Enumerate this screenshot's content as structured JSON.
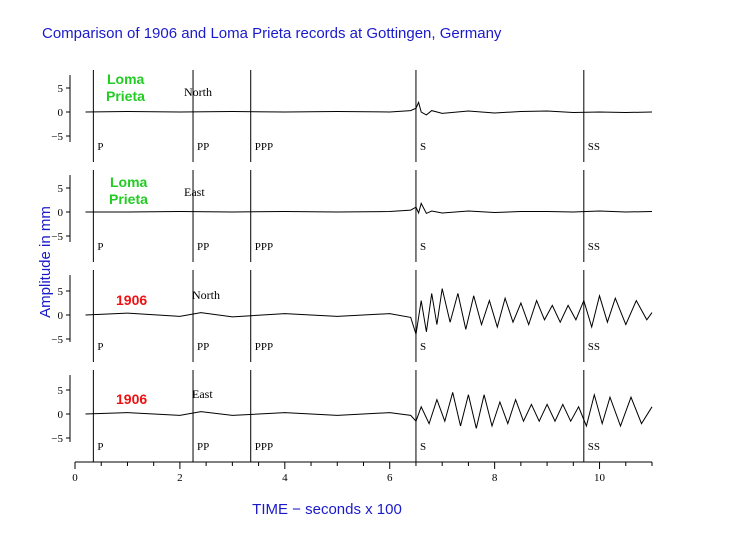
{
  "chart_data": {
    "type": "line",
    "title": "Comparison of 1906 and Loma Prieta records at Gottingen, Germany",
    "xlabel": "TIME − seconds x 100",
    "ylabel": "Amplitude in mm",
    "xlim": [
      0,
      11
    ],
    "x_ticks": [
      "0",
      "2",
      "4",
      "6",
      "8",
      "10"
    ],
    "ylim": [
      -6,
      6
    ],
    "y_ticks": [
      "5",
      "0",
      "−5"
    ],
    "phases": [
      {
        "label": "P",
        "x": 0.35
      },
      {
        "label": "PP",
        "x": 2.25
      },
      {
        "label": "PPP",
        "x": 3.35
      },
      {
        "label": "S",
        "x": 6.5
      },
      {
        "label": "SS",
        "x": 9.7
      }
    ],
    "series": [
      {
        "name": "Loma Prieta",
        "component": "North",
        "color": "#22cc22",
        "points": [
          [
            0.2,
            0
          ],
          [
            1,
            0.1
          ],
          [
            2,
            0
          ],
          [
            3,
            0.1
          ],
          [
            4,
            0
          ],
          [
            5,
            0.1
          ],
          [
            6,
            0
          ],
          [
            6.4,
            0.3
          ],
          [
            6.5,
            0.8
          ],
          [
            6.55,
            2.0
          ],
          [
            6.6,
            0
          ],
          [
            6.7,
            -0.6
          ],
          [
            6.8,
            0.3
          ],
          [
            7,
            -0.3
          ],
          [
            7.5,
            0.2
          ],
          [
            8,
            -0.2
          ],
          [
            8.5,
            0.1
          ],
          [
            9,
            0.2
          ],
          [
            9.5,
            -0.1
          ],
          [
            10,
            0
          ],
          [
            10.5,
            -0.1
          ],
          [
            11,
            0
          ]
        ]
      },
      {
        "name": "Loma Prieta",
        "component": "East",
        "color": "#22cc22",
        "points": [
          [
            0.2,
            0
          ],
          [
            1,
            0
          ],
          [
            2,
            0.1
          ],
          [
            3,
            0
          ],
          [
            4,
            0.1
          ],
          [
            5,
            0
          ],
          [
            6,
            0.1
          ],
          [
            6.4,
            0.4
          ],
          [
            6.5,
            1.0
          ],
          [
            6.55,
            -0.2
          ],
          [
            6.6,
            1.8
          ],
          [
            6.7,
            -0.3
          ],
          [
            6.8,
            0.2
          ],
          [
            7,
            -0.2
          ],
          [
            7.5,
            0.2
          ],
          [
            8,
            -0.1
          ],
          [
            8.5,
            0.1
          ],
          [
            9,
            0.1
          ],
          [
            9.5,
            0
          ],
          [
            10,
            0.2
          ],
          [
            10.5,
            0
          ],
          [
            11,
            0.1
          ]
        ]
      },
      {
        "name": "1906",
        "component": "North",
        "color": "#ee1111",
        "points": [
          [
            0.2,
            0
          ],
          [
            1,
            0.4
          ],
          [
            2,
            -0.3
          ],
          [
            2.4,
            0.5
          ],
          [
            3,
            -0.4
          ],
          [
            4,
            0.3
          ],
          [
            5,
            -0.3
          ],
          [
            6,
            0.3
          ],
          [
            6.4,
            -0.5
          ],
          [
            6.5,
            -4.0
          ],
          [
            6.6,
            3.0
          ],
          [
            6.7,
            -3.5
          ],
          [
            6.8,
            4.5
          ],
          [
            6.9,
            -2.0
          ],
          [
            7,
            5.5
          ],
          [
            7.15,
            -1.5
          ],
          [
            7.3,
            4.5
          ],
          [
            7.45,
            -3.0
          ],
          [
            7.6,
            4.0
          ],
          [
            7.75,
            -2.0
          ],
          [
            7.9,
            3.0
          ],
          [
            8.05,
            -2.5
          ],
          [
            8.2,
            3.5
          ],
          [
            8.35,
            -1.5
          ],
          [
            8.5,
            2.5
          ],
          [
            8.65,
            -2.0
          ],
          [
            8.8,
            3.0
          ],
          [
            8.95,
            -1.0
          ],
          [
            9.1,
            2.0
          ],
          [
            9.25,
            -1.5
          ],
          [
            9.4,
            2.0
          ],
          [
            9.55,
            -1.0
          ],
          [
            9.7,
            3.0
          ],
          [
            9.85,
            -2.5
          ],
          [
            10,
            4.0
          ],
          [
            10.15,
            -1.5
          ],
          [
            10.3,
            3.5
          ],
          [
            10.5,
            -2.0
          ],
          [
            10.7,
            3.0
          ],
          [
            10.9,
            -1.0
          ],
          [
            11,
            0.5
          ]
        ]
      },
      {
        "name": "1906",
        "component": "East",
        "color": "#ee1111",
        "points": [
          [
            0.2,
            0
          ],
          [
            1,
            0.3
          ],
          [
            2,
            -0.3
          ],
          [
            2.4,
            0.5
          ],
          [
            3,
            -0.3
          ],
          [
            4,
            0.3
          ],
          [
            5,
            -0.3
          ],
          [
            6,
            0.3
          ],
          [
            6.4,
            -0.3
          ],
          [
            6.5,
            -1.5
          ],
          [
            6.6,
            1.5
          ],
          [
            6.75,
            -2.0
          ],
          [
            6.9,
            3.0
          ],
          [
            7.05,
            -1.5
          ],
          [
            7.2,
            4.5
          ],
          [
            7.35,
            -2.5
          ],
          [
            7.5,
            4.0
          ],
          [
            7.65,
            -3.0
          ],
          [
            7.8,
            4.0
          ],
          [
            7.95,
            -2.5
          ],
          [
            8.1,
            2.5
          ],
          [
            8.25,
            -2.0
          ],
          [
            8.4,
            3.0
          ],
          [
            8.55,
            -1.5
          ],
          [
            8.7,
            2.0
          ],
          [
            8.85,
            -1.5
          ],
          [
            9,
            2.0
          ],
          [
            9.15,
            -1.5
          ],
          [
            9.3,
            2.0
          ],
          [
            9.45,
            -1.5
          ],
          [
            9.6,
            1.5
          ],
          [
            9.75,
            -2.5
          ],
          [
            9.9,
            4.0
          ],
          [
            10.05,
            -2.0
          ],
          [
            10.2,
            3.5
          ],
          [
            10.4,
            -2.5
          ],
          [
            10.6,
            3.5
          ],
          [
            10.8,
            -2.0
          ],
          [
            11,
            1.5
          ]
        ]
      }
    ]
  }
}
